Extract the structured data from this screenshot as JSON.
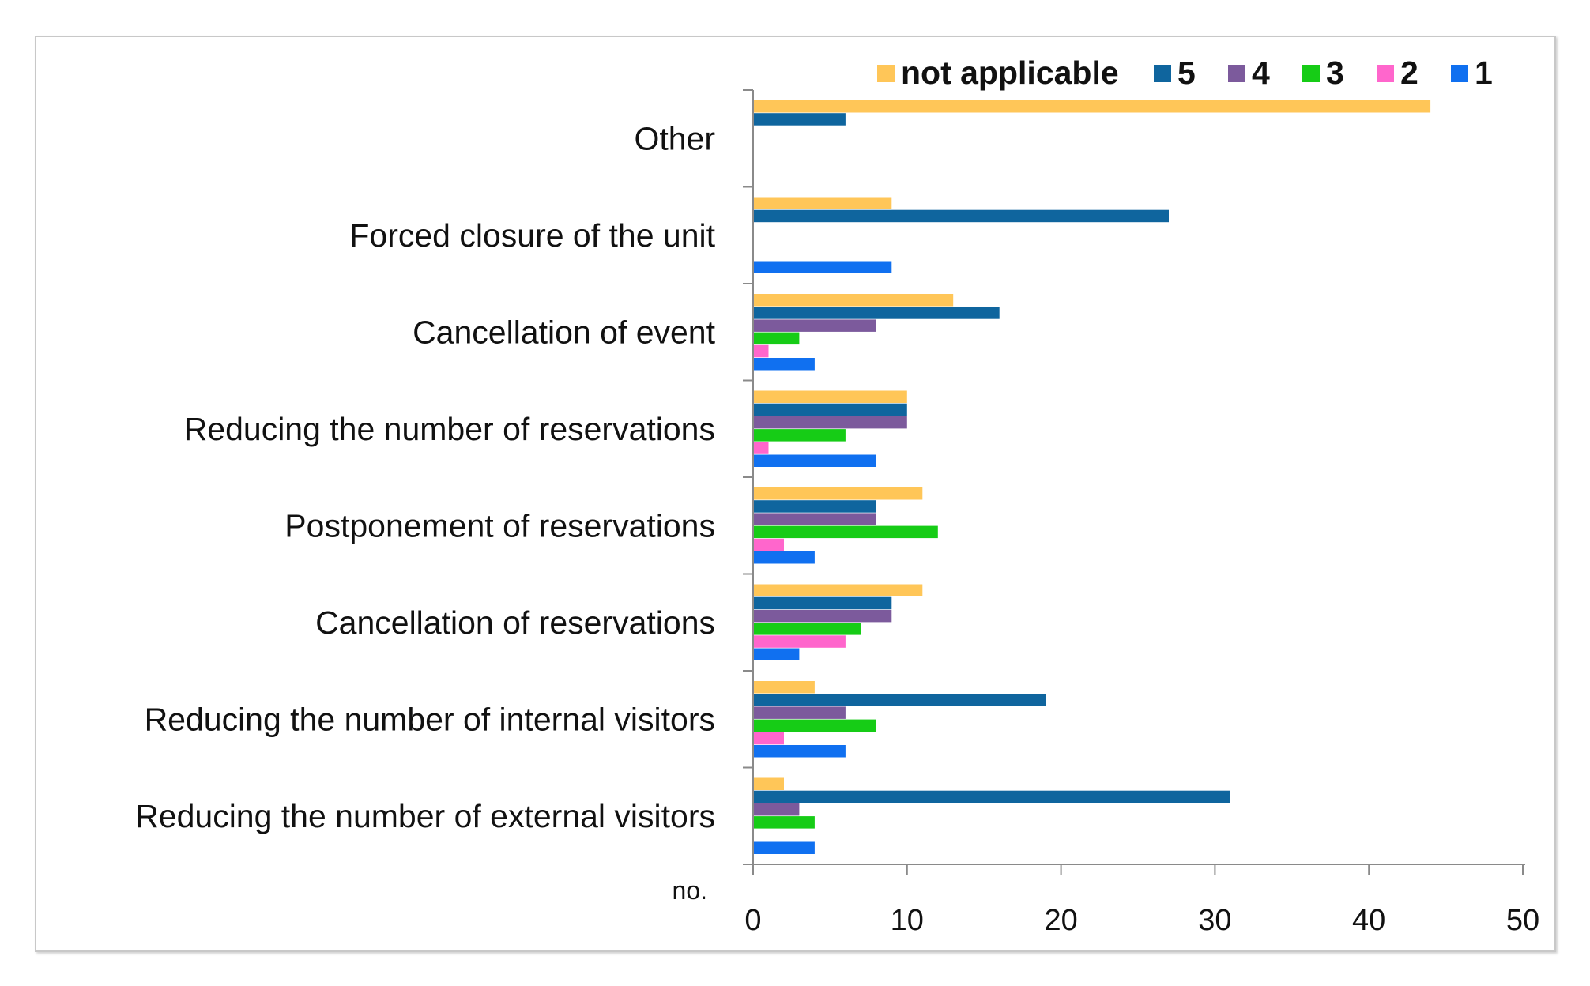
{
  "chart_data": {
    "type": "bar",
    "orientation": "horizontal",
    "title": "",
    "xlabel": "no.",
    "ylabel": "",
    "xlim": [
      0,
      50
    ],
    "x_ticks": [
      "0",
      "10",
      "20",
      "30",
      "40",
      "50"
    ],
    "grid": false,
    "legend_position": "top-right",
    "categories": [
      "Other",
      "Forced closure of the unit",
      "Cancellation of event",
      "Reducing the number of reservations",
      "Postponement of reservations",
      "Cancellation of reservations",
      "Reducing the number of internal visitors",
      "Reducing the number of external visitors"
    ],
    "series": [
      {
        "name": "not applicable",
        "color": "#FFC658",
        "values": [
          44,
          9,
          13,
          10,
          11,
          11,
          4,
          2
        ]
      },
      {
        "name": "5",
        "color": "#0F659E",
        "values": [
          6,
          27,
          16,
          10,
          8,
          9,
          19,
          31
        ]
      },
      {
        "name": "4",
        "color": "#7C5A9C",
        "values": [
          0,
          0,
          8,
          10,
          8,
          9,
          6,
          3
        ]
      },
      {
        "name": "3",
        "color": "#16CC16",
        "values": [
          0,
          0,
          3,
          6,
          12,
          7,
          8,
          4
        ]
      },
      {
        "name": "2",
        "color": "#FF66CC",
        "values": [
          0,
          0,
          1,
          1,
          2,
          6,
          2,
          0
        ]
      },
      {
        "name": "1",
        "color": "#1070F0",
        "values": [
          0,
          9,
          4,
          8,
          4,
          3,
          6,
          4
        ]
      }
    ]
  }
}
